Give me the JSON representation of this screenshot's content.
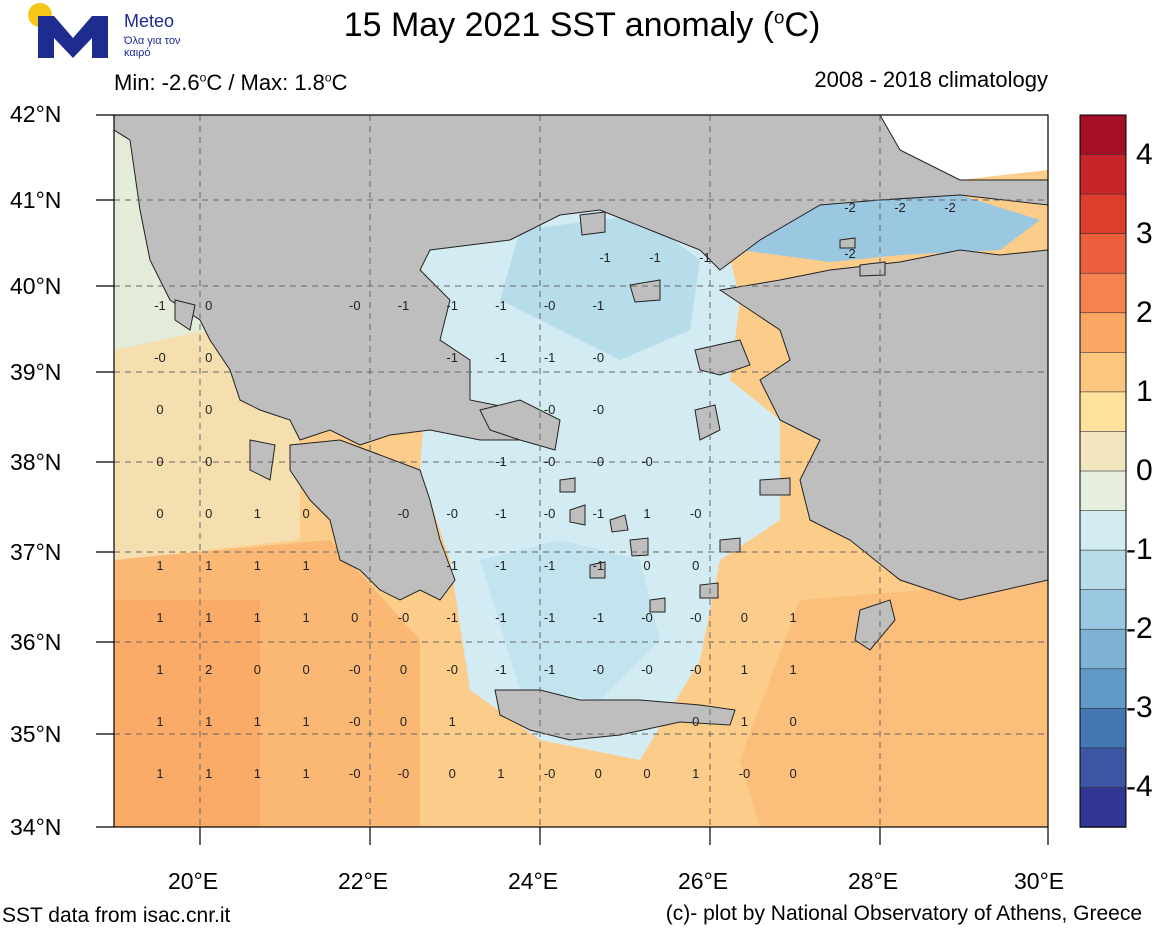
{
  "header": {
    "title_prefix": "15 May 2021 SST anomaly (",
    "title_unit_sup": "o",
    "title_suffix": "C)",
    "minmax_prefix": "Min: -2.6",
    "minmax_mid": "C / Max: 1.8",
    "minmax_suffix": "C",
    "climatology": "2008 - 2018 climatology"
  },
  "logo": {
    "name": "Meteo",
    "tagline": "Όλα για τον καιρό",
    "sun_color": "#f5c518",
    "brand_color": "#1e2b8f"
  },
  "map": {
    "lat_labels": [
      "42°N",
      "41°N",
      "40°N",
      "39°N",
      "38°N",
      "37°N",
      "36°N",
      "35°N",
      "34°N"
    ],
    "lon_labels": [
      "20°E",
      "22°E",
      "24°E",
      "26°E",
      "28°E",
      "30°E"
    ],
    "land_color": "#bebebe",
    "grid": true,
    "anomaly_values": [
      [
        "-1",
        "0",
        "",
        "",
        "-0",
        "-1",
        "-1",
        "-1",
        "-0",
        "-1",
        "",
        "",
        "",
        ""
      ],
      [
        "-0",
        "0",
        "",
        "",
        "",
        "",
        "-1",
        "-1",
        "-1",
        "-0",
        "",
        "",
        "",
        ""
      ],
      [
        "0",
        "0",
        "",
        "",
        "",
        "",
        "",
        "",
        "-0",
        "-0",
        "",
        "",
        "",
        ""
      ],
      [
        "0",
        "0",
        "",
        "",
        "",
        "",
        "",
        "-1",
        "-0",
        "-0",
        "-0",
        "",
        "",
        ""
      ],
      [
        "0",
        "0",
        "1",
        "0",
        "",
        "-0",
        "-0",
        "-1",
        "-0",
        "-1",
        "1",
        "-0",
        "",
        ""
      ],
      [
        "1",
        "1",
        "1",
        "1",
        "",
        "",
        "-1",
        "-1",
        "-1",
        "-1",
        "0",
        "0",
        "",
        ""
      ],
      [
        "1",
        "1",
        "1",
        "1",
        "0",
        "-0",
        "-1",
        "-1",
        "-1",
        "-1",
        "-0",
        "-0",
        "0",
        "1"
      ],
      [
        "1",
        "2",
        "0",
        "0",
        "-0",
        "0",
        "-0",
        "-1",
        "-1",
        "-0",
        "-0",
        "-0",
        "1",
        "1"
      ],
      [
        "1",
        "1",
        "1",
        "1",
        "-0",
        "0",
        "1",
        "",
        "",
        "",
        "",
        "0",
        "1",
        "0"
      ],
      [
        "1",
        "1",
        "1",
        "1",
        "-0",
        "-0",
        "0",
        "1",
        "-0",
        "0",
        "0",
        "1",
        "-0",
        "0"
      ]
    ],
    "aegean_top_values": [
      "-1",
      "-1",
      "-1",
      "-2",
      "-2",
      "-2",
      "-2"
    ]
  },
  "colorbar": {
    "labels": [
      "4",
      "3",
      "2",
      "1",
      "0",
      "-1",
      "-2",
      "-3",
      "-4"
    ],
    "colors": [
      "#a50f26",
      "#c8252b",
      "#dd3d2d",
      "#ec5f3c",
      "#f6834f",
      "#fba865",
      "#fdc67e",
      "#fee29c",
      "#f1e6c0",
      "#e6eee0",
      "#d3ecf3",
      "#b6dde9",
      "#99c8e0",
      "#7fb3d6",
      "#6199c7",
      "#4477b3",
      "#3d56a4",
      "#313695"
    ]
  },
  "footer": {
    "left": "SST data from isac.cnr.it",
    "right": "(c)- plot by National Observatory of Athens, Greece"
  }
}
